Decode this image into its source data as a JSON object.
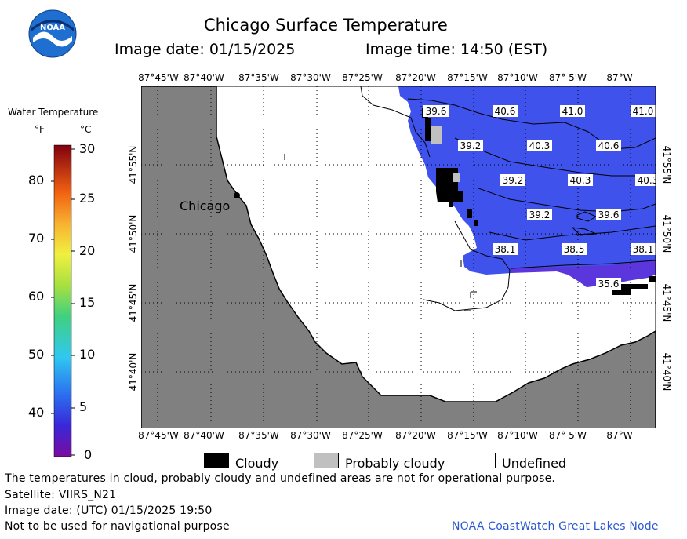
{
  "header": {
    "title": "Chicago Surface Temperature",
    "image_date": "Image date: 01/15/2025",
    "image_time": "Image time: 14:50 (EST)"
  },
  "logo": {
    "text": "NOAA"
  },
  "colorbar": {
    "title": "Water Temperature",
    "unit_f": "°F",
    "unit_c": "°C",
    "f_ticks": [
      "80",
      "70",
      "60",
      "50",
      "40"
    ],
    "c_ticks": [
      "30",
      "25",
      "20",
      "15",
      "10",
      "5",
      "0"
    ]
  },
  "map": {
    "lon_labels": [
      "87°45'W",
      "87°40'W",
      "87°35'W",
      "87°30'W",
      "87°25'W",
      "87°20'W",
      "87°15'W",
      "87°10'W",
      "87° 5'W",
      "87°W"
    ],
    "lat_labels": [
      "41°55'N",
      "41°50'N",
      "41°45'N",
      "41°40'N"
    ],
    "city_label": "Chicago",
    "temperature_labels": [
      "39.6",
      "40.6",
      "41.0",
      "41.0",
      "39.2",
      "40.3",
      "40.6",
      "39.2",
      "40.3",
      "40.3",
      "39.2",
      "39.6",
      "38.1",
      "38.5",
      "38.1",
      "35.6"
    ],
    "colors": {
      "land": "#808080",
      "water": "#3b4fe8",
      "cloudy": "#000000",
      "probably_cloudy": "#c0c0c0",
      "undefined": "#ffffff"
    }
  },
  "legend": {
    "cloudy": "Cloudy",
    "probably_cloudy": "Probably cloudy",
    "undefined": "Undefined"
  },
  "footer": {
    "disclaimer": "The temperatures in cloud, probably cloudy and undefined areas are not for operational purpose.",
    "satellite": "Satellite: VIIRS_N21",
    "utc_date": "Image date: (UTC) 01/15/2025  19:50",
    "nav_warning": "Not to be used for navigational purpose",
    "credit": "NOAA CoastWatch Great Lakes Node"
  }
}
